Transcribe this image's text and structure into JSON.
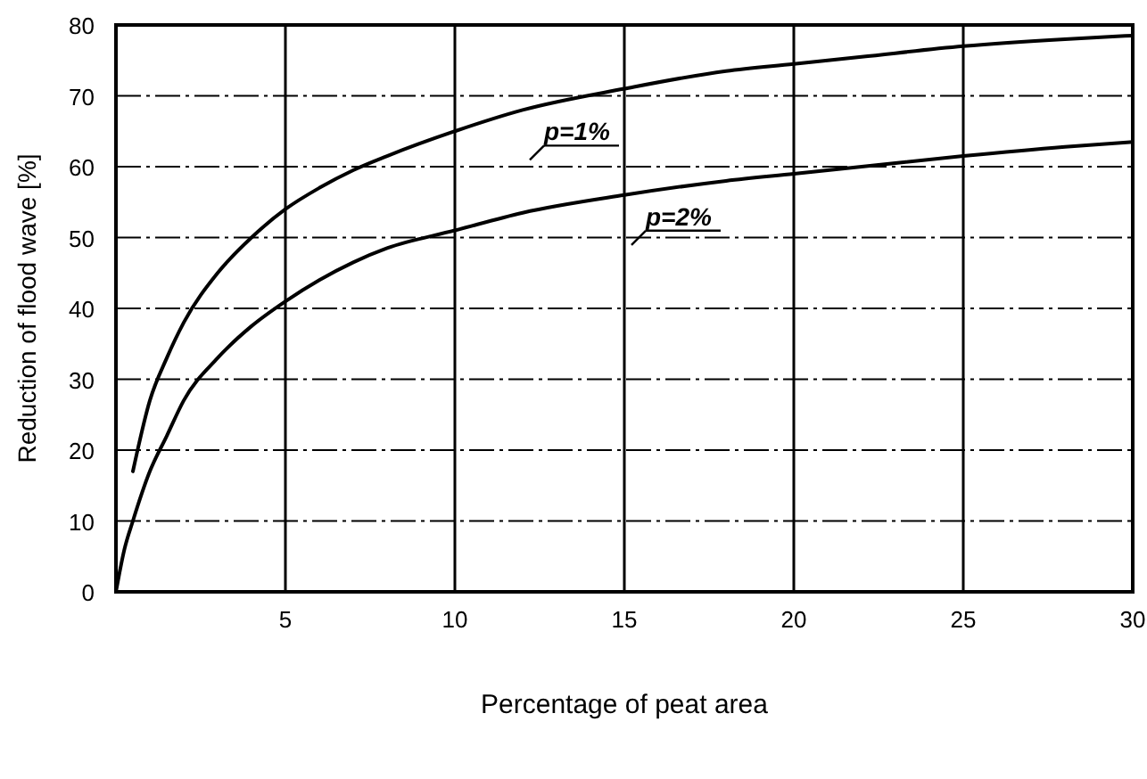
{
  "chart_data": {
    "type": "line",
    "xlabel": "Percentage of peat area",
    "ylabel": "Reduction of flood wave [%]",
    "xlim": [
      0,
      30
    ],
    "ylim": [
      0,
      80
    ],
    "xticks": [
      {
        "value": 0,
        "label": null
      },
      5,
      10,
      15,
      20,
      25,
      30
    ],
    "yticks": [
      0,
      10,
      20,
      30,
      40,
      50,
      60,
      70,
      80
    ],
    "grid": true,
    "marker": "none",
    "line_style": "solid",
    "series": [
      {
        "name": "p=1%",
        "color": "#000000",
        "x": [
          0.5,
          1,
          1.5,
          2,
          3,
          4,
          5,
          6,
          7,
          8,
          10,
          12,
          15,
          18,
          20,
          22,
          25,
          28,
          30
        ],
        "values": [
          17,
          27,
          33,
          38,
          45,
          50,
          54,
          57,
          59.5,
          61.5,
          65,
          68,
          71,
          73.5,
          74.5,
          75.5,
          77,
          78,
          78.5
        ]
      },
      {
        "name": "p=2%",
        "color": "#000000",
        "x": [
          0,
          0.25,
          0.5,
          1,
          1.5,
          2,
          3,
          4,
          5,
          6,
          7,
          8,
          10,
          12,
          15,
          18,
          20,
          22,
          25,
          28,
          30
        ],
        "values": [
          0,
          6,
          10,
          17,
          22,
          27,
          33,
          37.5,
          41,
          44,
          46.5,
          48.5,
          51,
          53.5,
          56,
          58,
          59,
          60,
          61.5,
          62.8,
          63.5
        ]
      }
    ]
  }
}
